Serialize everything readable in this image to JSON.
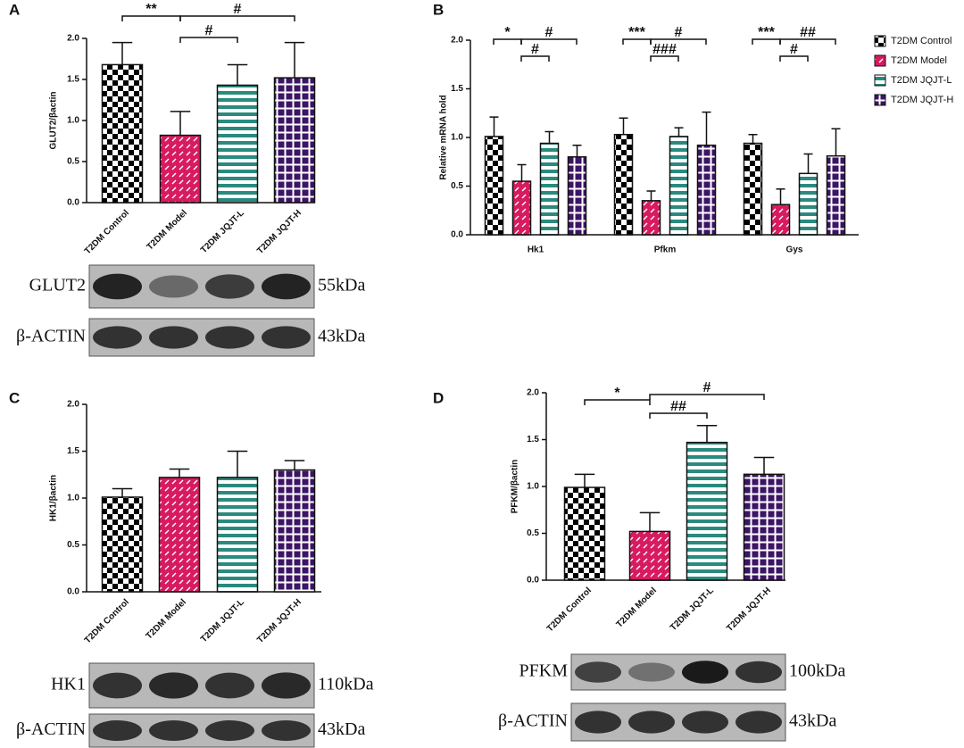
{
  "chart_data": [
    {
      "type": "bar",
      "panel": "A",
      "ylabel": "GLUT2/βactin",
      "categories": [
        "T2DM Control",
        "T2DM Model",
        "T2DM JQJT-L",
        "T2DM JQJT-H"
      ],
      "values": [
        1.68,
        0.82,
        1.43,
        1.52
      ],
      "errors": [
        0.27,
        0.29,
        0.25,
        0.43
      ],
      "colors": [
        "#000000",
        "#d81b60",
        "#2a8a7c",
        "#3d1466"
      ],
      "ylim": [
        0,
        2
      ],
      "yticks": [
        {
          "value": 0,
          "label": "0.0"
        },
        0.5,
        {
          "value": 1,
          "label": "1.0"
        },
        1.5,
        {
          "value": 2,
          "label": "2.0"
        }
      ],
      "annotations": [
        "**",
        "#",
        "#"
      ],
      "blots": [
        {
          "protein": "GLUT2",
          "size": "55kDa"
        },
        {
          "protein": "β-ACTIN",
          "size": "43kDa"
        }
      ]
    },
    {
      "type": "bar",
      "panel": "B",
      "ylabel": "Relative mRNA hold",
      "categories": [
        "Hk1",
        "Pfkm",
        "Gys"
      ],
      "series": [
        {
          "name": "T2DM Control",
          "color": "#000000",
          "values": [
            1.01,
            1.03,
            0.94
          ],
          "errors": [
            0.2,
            0.17,
            0.09
          ]
        },
        {
          "name": "T2DM Model",
          "color": "#d81b60",
          "values": [
            0.55,
            0.35,
            0.31
          ],
          "errors": [
            0.17,
            0.1,
            0.16
          ]
        },
        {
          "name": "T2DM JQJT-L",
          "color": "#2a8a7c",
          "values": [
            0.94,
            1.01,
            0.63
          ],
          "errors": [
            0.12,
            0.09,
            0.2
          ]
        },
        {
          "name": "T2DM JQJT-H",
          "color": "#3d1466",
          "values": [
            0.8,
            0.92,
            0.81
          ],
          "errors": [
            0.12,
            0.34,
            0.28
          ]
        }
      ],
      "ylim": [
        0,
        2
      ],
      "yticks": [
        {
          "value": 0,
          "label": "0.0"
        },
        0.5,
        {
          "value": 1,
          "label": "1.0"
        },
        1.5,
        {
          "value": 2,
          "label": "2.0"
        }
      ],
      "annotations": [
        "*",
        "#",
        "#",
        "***",
        "#",
        "###",
        "***",
        "##",
        "#"
      ]
    },
    {
      "type": "bar",
      "panel": "C",
      "ylabel": "HK1/βactin",
      "categories": [
        "T2DM Control",
        "T2DM Model",
        "T2DM JQJT-L",
        "T2DM JQJT-H"
      ],
      "values": [
        1.01,
        1.22,
        1.22,
        1.3
      ],
      "errors": [
        0.09,
        0.09,
        0.28,
        0.1
      ],
      "colors": [
        "#000000",
        "#d81b60",
        "#2a8a7c",
        "#3d1466"
      ],
      "ylim": [
        0,
        2
      ],
      "yticks": [
        {
          "value": 0,
          "label": "0.0"
        },
        0.5,
        {
          "value": 1,
          "label": "1.0"
        },
        1.5,
        {
          "value": 2,
          "label": "2.0"
        }
      ],
      "blots": [
        {
          "protein": "HK1",
          "size": "110kDa"
        },
        {
          "protein": "β-ACTIN",
          "size": "43kDa"
        }
      ]
    },
    {
      "type": "bar",
      "panel": "D",
      "ylabel": "PFKM/βactin",
      "categories": [
        "T2DM Control",
        "T2DM Model",
        "T2DM JQJT-L",
        "T2DM JQJT-H"
      ],
      "values": [
        0.99,
        0.52,
        1.47,
        1.13
      ],
      "errors": [
        0.14,
        0.2,
        0.18,
        0.18
      ],
      "colors": [
        "#000000",
        "#d81b60",
        "#2a8a7c",
        "#3d1466"
      ],
      "ylim": [
        0,
        2
      ],
      "yticks": [
        {
          "value": 0,
          "label": "0.0"
        },
        0.5,
        {
          "value": 1,
          "label": "1.0"
        },
        1.5,
        {
          "value": 2,
          "label": "2.0"
        }
      ],
      "annotations": [
        "*",
        "#",
        "##"
      ],
      "blots": [
        {
          "protein": "PFKM",
          "size": "100kDa"
        },
        {
          "protein": "β-ACTIN",
          "size": "43kDa"
        }
      ]
    }
  ]
}
